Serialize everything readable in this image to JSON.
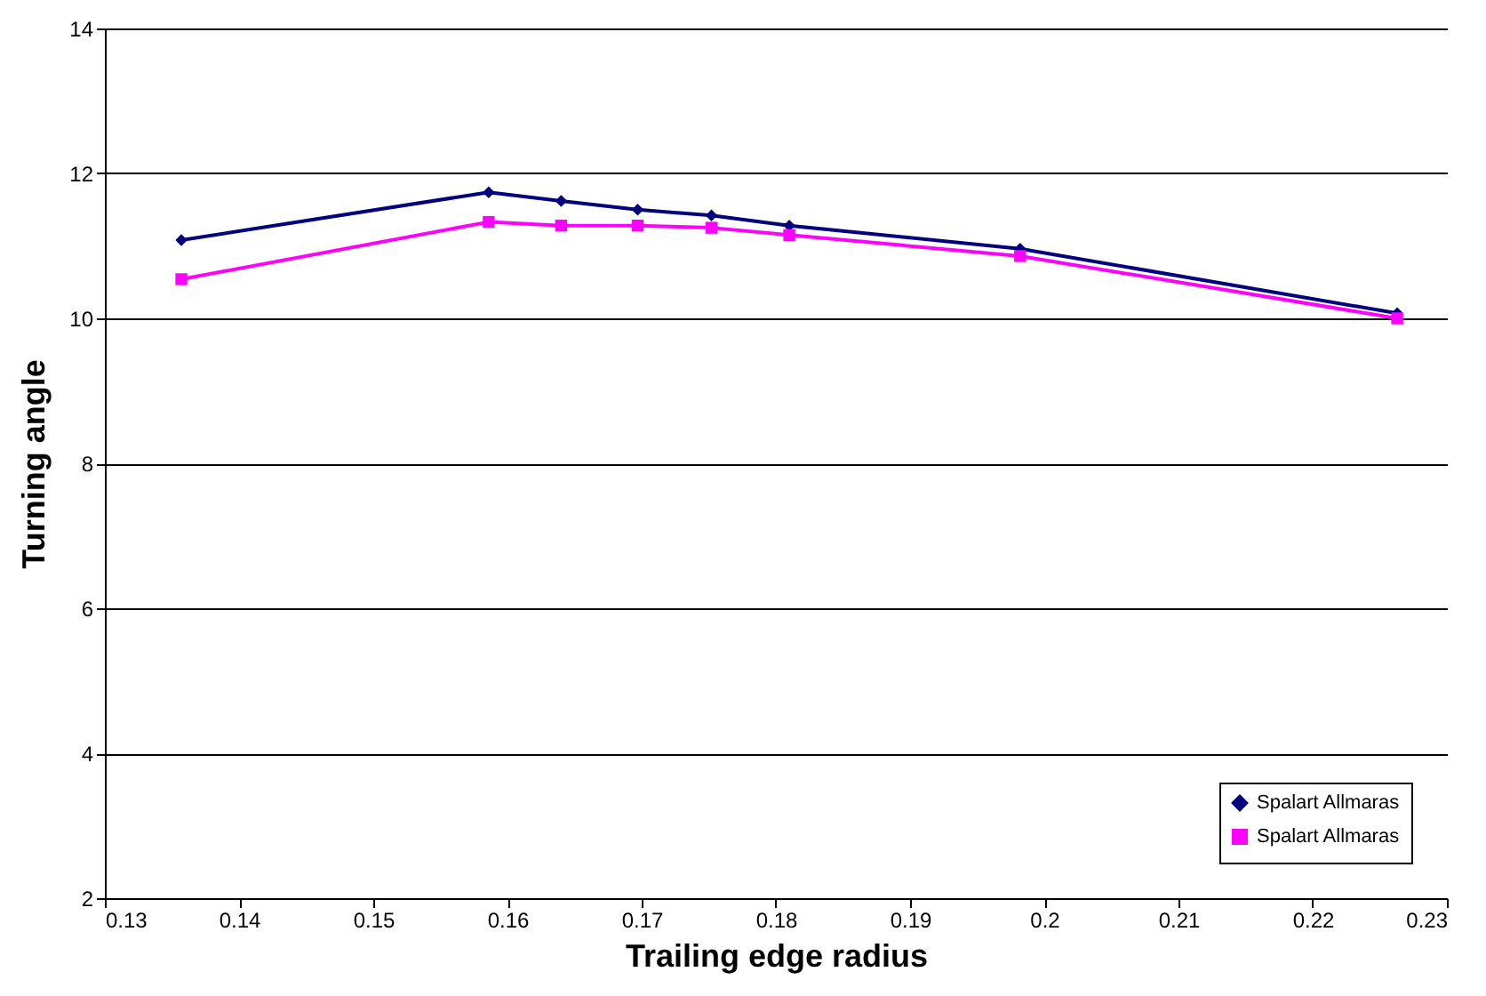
{
  "chart_data": {
    "type": "line",
    "xlabel": "Trailing edge radius",
    "ylabel": "Turning angle",
    "x": [
      0.1357,
      0.1586,
      0.164,
      0.1697,
      0.1752,
      0.181,
      0.1982,
      0.2263
    ],
    "series": [
      {
        "name": "Spalart Allmaras",
        "color": "#000080",
        "marker": "diamond",
        "values": [
          11.08,
          11.74,
          11.62,
          11.5,
          11.42,
          11.28,
          10.96,
          10.07
        ]
      },
      {
        "name": "Spalart Allmaras",
        "color": "#ff00ff",
        "marker": "square",
        "values": [
          10.54,
          11.33,
          11.28,
          11.28,
          11.25,
          11.15,
          10.86,
          10.0
        ]
      }
    ],
    "xlim": [
      0.13,
      0.23
    ],
    "xticks": [
      0.13,
      0.14,
      0.15,
      0.16,
      0.17,
      0.18,
      0.19,
      0.2,
      0.21,
      0.22,
      0.23
    ],
    "ylim": [
      2,
      14
    ],
    "yticks": [
      2,
      4,
      6,
      8,
      10,
      12,
      14
    ],
    "grid": "y",
    "legend": "bottom right",
    "line_style": "solid"
  }
}
